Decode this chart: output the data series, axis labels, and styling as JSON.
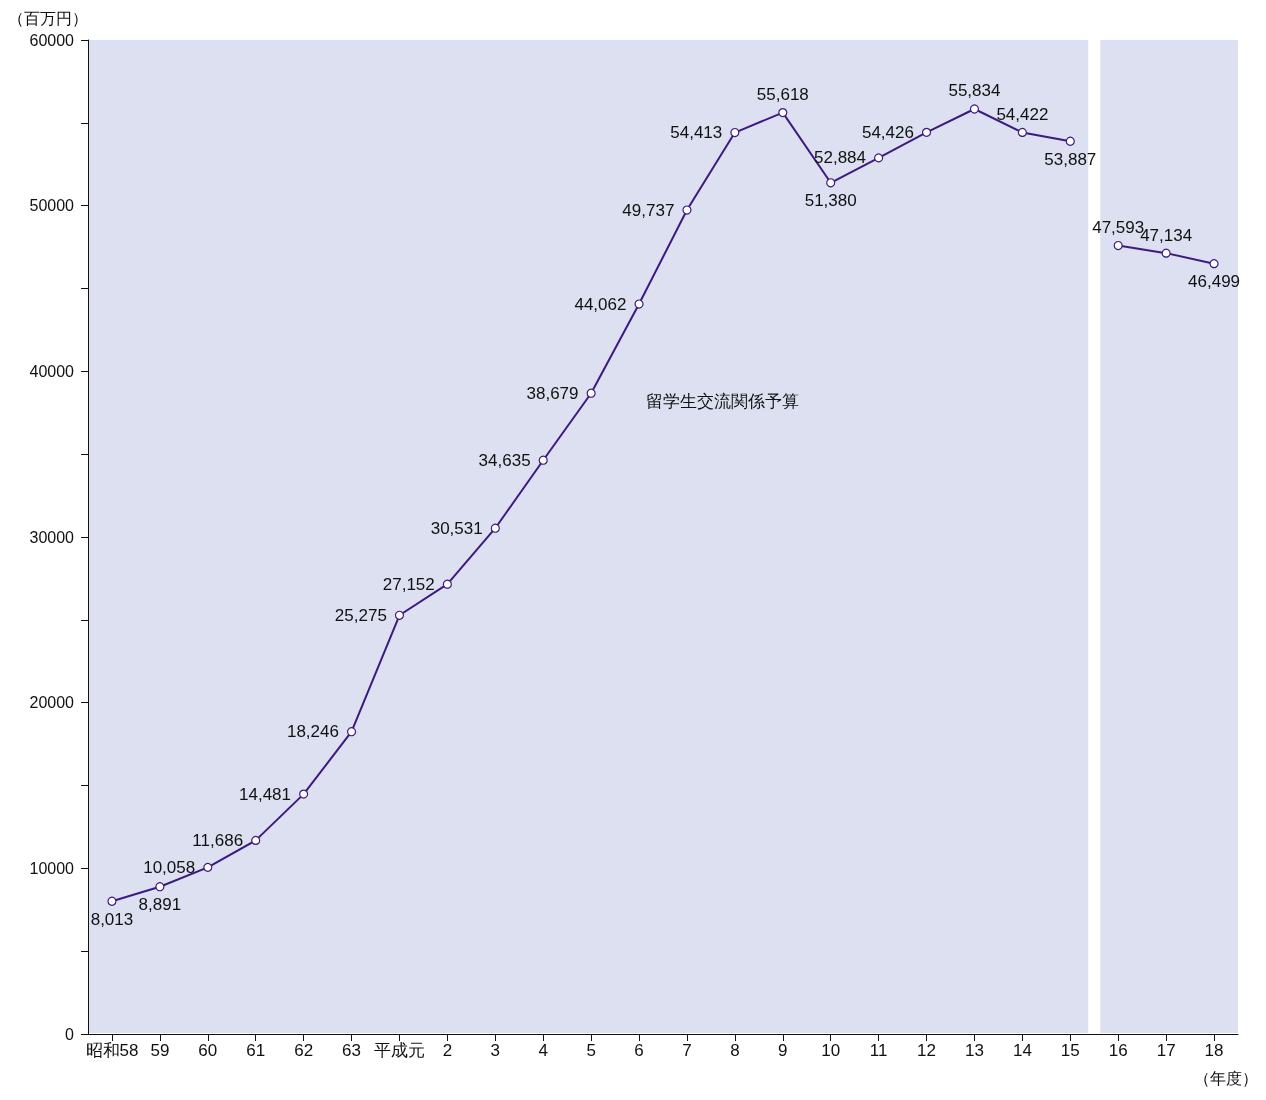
{
  "chart_data": {
    "type": "line",
    "ylabel": "（百万円）",
    "xlabel": "（年度）",
    "categories": [
      "昭和58",
      "59",
      "60",
      "61",
      "62",
      "63",
      "平成元",
      "2",
      "3",
      "4",
      "5",
      "6",
      "7",
      "8",
      "9",
      "10",
      "11",
      "12",
      "13",
      "14",
      "15",
      "16",
      "17",
      "18"
    ],
    "series": [
      {
        "color": "#3d1a80",
        "values": [
          8013,
          8891,
          10058,
          11686,
          14481,
          18246,
          25275,
          27152,
          30531,
          34635,
          38679,
          44062,
          49737,
          54413,
          55618,
          51380,
          52884,
          54426,
          55834,
          54422,
          53887,
          null,
          null,
          null
        ],
        "value_labels": [
          "8,013",
          "8,891",
          "10,058",
          "11,686",
          "14,481",
          "18,246",
          "25,275",
          "27,152",
          "30,531",
          "34,635",
          "38,679",
          "44,062",
          "49,737",
          "54,413",
          "55,618",
          "51,380",
          "52,884",
          "54,426",
          "55,834",
          "54,422",
          "53,887",
          null,
          null,
          null
        ]
      },
      {
        "color": "#3d1a80",
        "values": [
          null,
          null,
          null,
          null,
          null,
          null,
          null,
          null,
          null,
          null,
          null,
          null,
          null,
          null,
          null,
          null,
          null,
          null,
          null,
          null,
          null,
          47593,
          47134,
          46499
        ],
        "value_labels": [
          null,
          null,
          null,
          null,
          null,
          null,
          null,
          null,
          null,
          null,
          null,
          null,
          null,
          null,
          null,
          null,
          null,
          null,
          null,
          null,
          null,
          "47,593",
          "47,134",
          "46,499"
        ]
      }
    ],
    "ylim": [
      0,
      60000
    ],
    "yticks": [
      0,
      {
        "value": 5000,
        "label": null
      },
      10000,
      {
        "value": 15000,
        "label": null
      },
      20000,
      {
        "value": 25000,
        "label": null
      },
      30000,
      {
        "value": 35000,
        "label": null
      },
      40000,
      {
        "value": 45000,
        "label": null
      },
      50000,
      {
        "value": 55000,
        "label": null
      },
      60000
    ],
    "bands": [
      {
        "axis": "x",
        "from": "昭和58",
        "to": "15",
        "color": "#dce0f1"
      },
      {
        "axis": "x",
        "from": "16",
        "to": "18",
        "color": "#dce0f1"
      }
    ],
    "annotations": [
      "留学生交流関係予算"
    ],
    "marker": "circle",
    "line_style": "solid"
  }
}
